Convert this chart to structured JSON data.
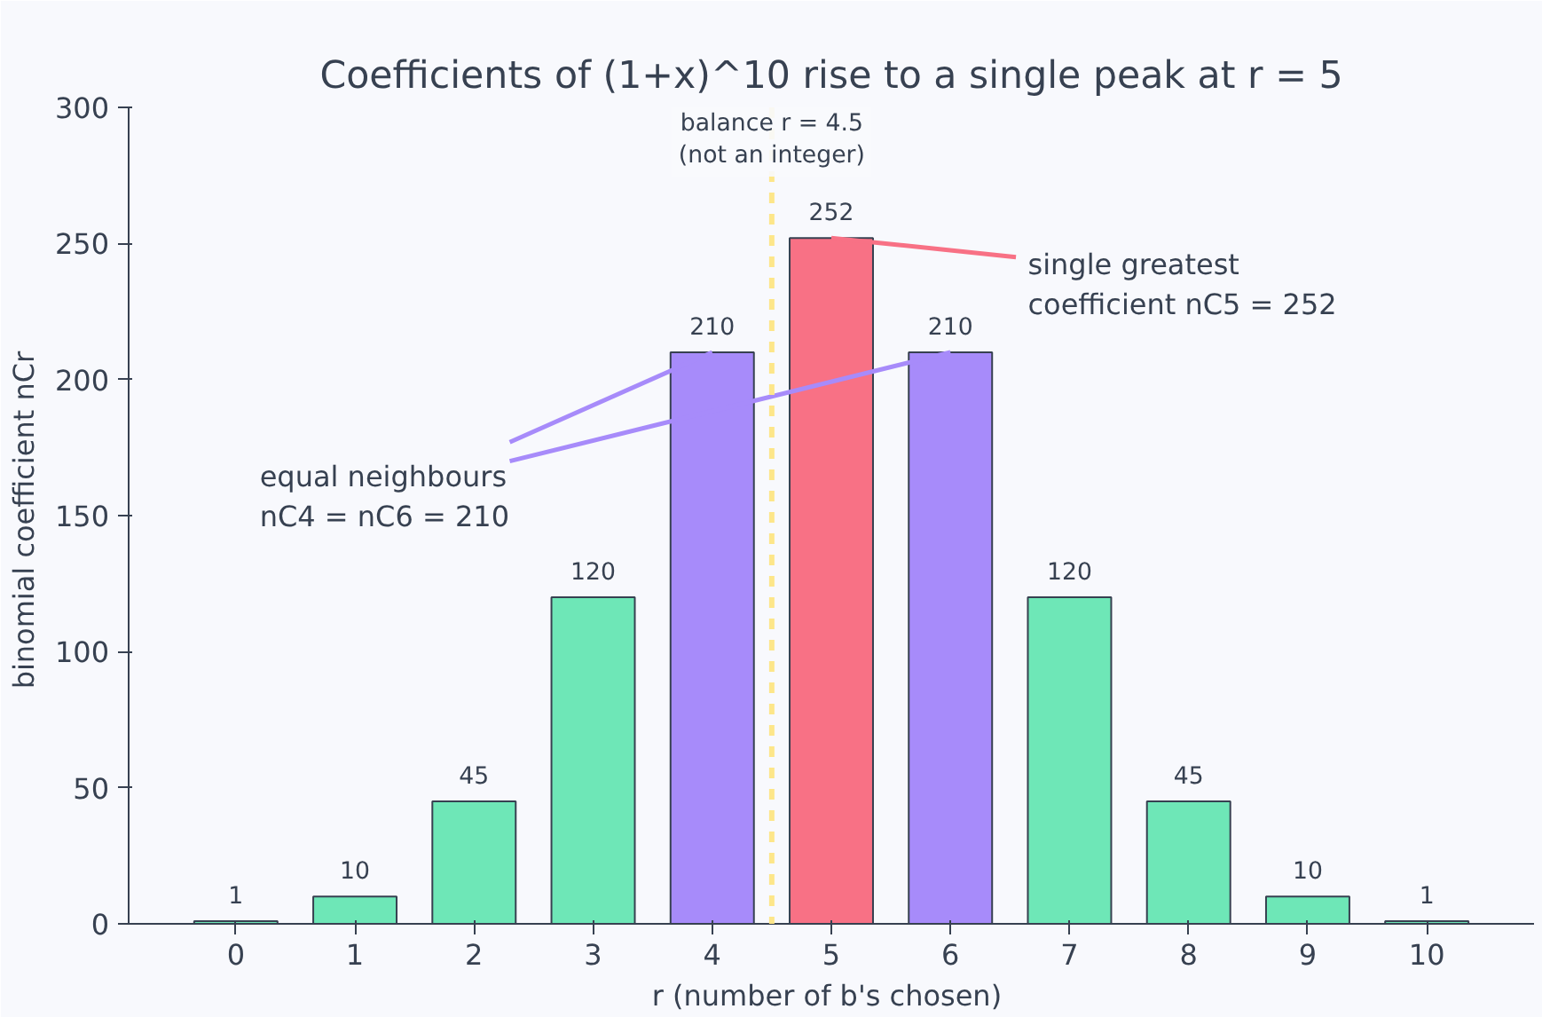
{
  "chart_data": {
    "type": "bar",
    "title": "Coefficients of (1+x)^10 rise to a single peak at r = 5",
    "xlabel": "r  (number of b's chosen)",
    "ylabel": "binomial coefficient  nCr",
    "x": [
      0,
      1,
      2,
      3,
      4,
      5,
      6,
      7,
      8,
      9,
      10
    ],
    "values": [
      1,
      10,
      45,
      120,
      210,
      252,
      210,
      120,
      45,
      10,
      1
    ],
    "colors": [
      "#6ee7b7",
      "#6ee7b7",
      "#6ee7b7",
      "#6ee7b7",
      "#a78bfa",
      "#f87185",
      "#a78bfa",
      "#6ee7b7",
      "#6ee7b7",
      "#6ee7b7",
      "#6ee7b7"
    ],
    "xlim": [
      -0.9,
      10.9
    ],
    "xticks": [
      0,
      1,
      2,
      3,
      4,
      5,
      6,
      7,
      8,
      9,
      10
    ],
    "ylim": [
      0,
      300
    ],
    "yticks": [
      0,
      50,
      100,
      150,
      200,
      250,
      300
    ],
    "data_labels": true,
    "grid": false,
    "ref_lines": [
      {
        "axis": "x",
        "value": 4.5,
        "label": "balance r = 4.5\n(not an integer)",
        "color": "#fde68a",
        "line_style": "dashed"
      }
    ],
    "annotations": [
      {
        "text": "single greatest\ncoefficient  nC5 = 252",
        "x": 5,
        "y": 252
      },
      {
        "text": "equal neighbours\nnC4 = nC6 = 210",
        "x": 4,
        "y": 210
      }
    ]
  }
}
